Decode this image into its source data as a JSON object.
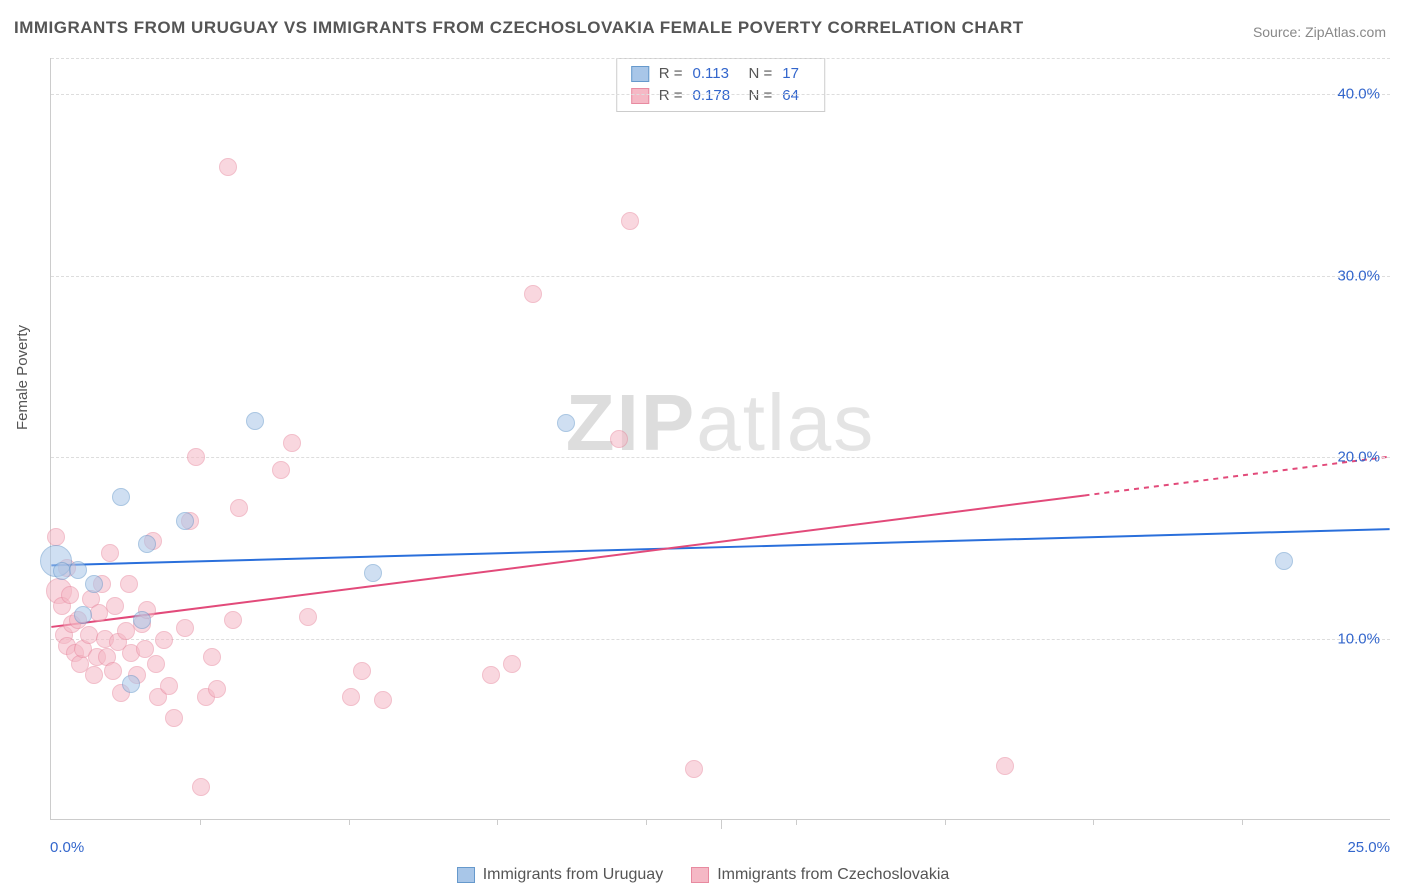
{
  "title": "IMMIGRANTS FROM URUGUAY VS IMMIGRANTS FROM CZECHOSLOVAKIA FEMALE POVERTY CORRELATION CHART",
  "source_label": "Source:",
  "source_name": "ZipAtlas.com",
  "y_axis_label": "Female Poverty",
  "watermark_bold": "ZIP",
  "watermark_thin": "atlas",
  "chart": {
    "type": "scatter",
    "xlim": [
      0,
      25
    ],
    "ylim": [
      0,
      42
    ],
    "x_ticks": [
      0,
      12.5,
      25
    ],
    "x_tick_labels": [
      "0.0%",
      "",
      "25.0%"
    ],
    "x_minor_ticks": [
      2.78,
      5.56,
      8.33,
      11.11,
      13.89,
      16.67,
      19.44,
      22.22
    ],
    "y_ticks": [
      10,
      20,
      30,
      40
    ],
    "y_tick_labels": [
      "10.0%",
      "20.0%",
      "30.0%",
      "40.0%"
    ],
    "background_color": "#ffffff",
    "grid_color": "#dddddd",
    "axis_color": "#cccccc",
    "tick_label_color": "#3366cc",
    "point_radius": 9,
    "point_opacity": 0.55,
    "series": [
      {
        "name": "Immigrants from Uruguay",
        "color_fill": "#a8c6e8",
        "color_stroke": "#6699cc",
        "R": "0.113",
        "N": "17",
        "trend": {
          "x1": 0,
          "y1": 14.0,
          "x2": 25,
          "y2": 16.0,
          "color": "#2a6fdb",
          "width": 2,
          "dash_after_x": null
        },
        "points": [
          {
            "x": 0.1,
            "y": 14.3,
            "r": 16
          },
          {
            "x": 0.2,
            "y": 13.7
          },
          {
            "x": 0.5,
            "y": 13.8
          },
          {
            "x": 0.6,
            "y": 11.3
          },
          {
            "x": 0.8,
            "y": 13.0
          },
          {
            "x": 1.3,
            "y": 17.8
          },
          {
            "x": 1.5,
            "y": 7.5
          },
          {
            "x": 1.7,
            "y": 11.0
          },
          {
            "x": 1.8,
            "y": 15.2
          },
          {
            "x": 2.5,
            "y": 16.5
          },
          {
            "x": 3.8,
            "y": 22.0
          },
          {
            "x": 6.0,
            "y": 13.6
          },
          {
            "x": 9.6,
            "y": 21.9
          },
          {
            "x": 23.0,
            "y": 14.3
          }
        ]
      },
      {
        "name": "Immigrants from Czechoslovakia",
        "color_fill": "#f5b8c5",
        "color_stroke": "#e88aa0",
        "R": "0.178",
        "N": "64",
        "trend": {
          "x1": 0,
          "y1": 10.6,
          "x2": 25,
          "y2": 20.0,
          "color": "#e24a7a",
          "width": 2,
          "dash_after_x": 19.3
        },
        "points": [
          {
            "x": 0.1,
            "y": 15.6
          },
          {
            "x": 0.15,
            "y": 12.6,
            "r": 13
          },
          {
            "x": 0.2,
            "y": 11.8
          },
          {
            "x": 0.25,
            "y": 10.2
          },
          {
            "x": 0.3,
            "y": 9.6
          },
          {
            "x": 0.3,
            "y": 13.9
          },
          {
            "x": 0.35,
            "y": 12.4
          },
          {
            "x": 0.4,
            "y": 10.8
          },
          {
            "x": 0.45,
            "y": 9.2
          },
          {
            "x": 0.5,
            "y": 11.0
          },
          {
            "x": 0.55,
            "y": 8.6
          },
          {
            "x": 0.6,
            "y": 9.4
          },
          {
            "x": 0.7,
            "y": 10.2
          },
          {
            "x": 0.75,
            "y": 12.2
          },
          {
            "x": 0.8,
            "y": 8.0
          },
          {
            "x": 0.85,
            "y": 9.0
          },
          {
            "x": 0.9,
            "y": 11.4
          },
          {
            "x": 0.95,
            "y": 13.0
          },
          {
            "x": 1.0,
            "y": 10.0
          },
          {
            "x": 1.05,
            "y": 9.0
          },
          {
            "x": 1.1,
            "y": 14.7
          },
          {
            "x": 1.15,
            "y": 8.2
          },
          {
            "x": 1.2,
            "y": 11.8
          },
          {
            "x": 1.25,
            "y": 9.8
          },
          {
            "x": 1.3,
            "y": 7.0
          },
          {
            "x": 1.4,
            "y": 10.4
          },
          {
            "x": 1.45,
            "y": 13.0
          },
          {
            "x": 1.5,
            "y": 9.2
          },
          {
            "x": 1.6,
            "y": 8.0
          },
          {
            "x": 1.7,
            "y": 10.8
          },
          {
            "x": 1.75,
            "y": 9.4
          },
          {
            "x": 1.8,
            "y": 11.6
          },
          {
            "x": 1.9,
            "y": 15.4
          },
          {
            "x": 1.95,
            "y": 8.6
          },
          {
            "x": 2.0,
            "y": 6.8
          },
          {
            "x": 2.1,
            "y": 9.9
          },
          {
            "x": 2.2,
            "y": 7.4
          },
          {
            "x": 2.3,
            "y": 5.6
          },
          {
            "x": 2.5,
            "y": 10.6
          },
          {
            "x": 2.6,
            "y": 16.5
          },
          {
            "x": 2.7,
            "y": 20.0
          },
          {
            "x": 2.8,
            "y": 1.8
          },
          {
            "x": 2.9,
            "y": 6.8
          },
          {
            "x": 3.0,
            "y": 9.0
          },
          {
            "x": 3.1,
            "y": 7.2
          },
          {
            "x": 3.3,
            "y": 36.0
          },
          {
            "x": 3.4,
            "y": 11.0
          },
          {
            "x": 3.5,
            "y": 17.2
          },
          {
            "x": 4.3,
            "y": 19.3
          },
          {
            "x": 4.5,
            "y": 20.8
          },
          {
            "x": 4.8,
            "y": 11.2
          },
          {
            "x": 5.6,
            "y": 6.8
          },
          {
            "x": 5.8,
            "y": 8.2
          },
          {
            "x": 6.2,
            "y": 6.6
          },
          {
            "x": 8.2,
            "y": 8.0
          },
          {
            "x": 8.6,
            "y": 8.6
          },
          {
            "x": 9.0,
            "y": 29.0
          },
          {
            "x": 10.6,
            "y": 21.0
          },
          {
            "x": 10.8,
            "y": 33.0
          },
          {
            "x": 12.0,
            "y": 2.8
          },
          {
            "x": 17.8,
            "y": 3.0
          }
        ]
      }
    ]
  },
  "bottom_legend": [
    {
      "label": "Immigrants from Uruguay",
      "fill": "#a8c6e8",
      "stroke": "#6699cc"
    },
    {
      "label": "Immigrants from Czechoslovakia",
      "fill": "#f5b8c5",
      "stroke": "#e88aa0"
    }
  ]
}
